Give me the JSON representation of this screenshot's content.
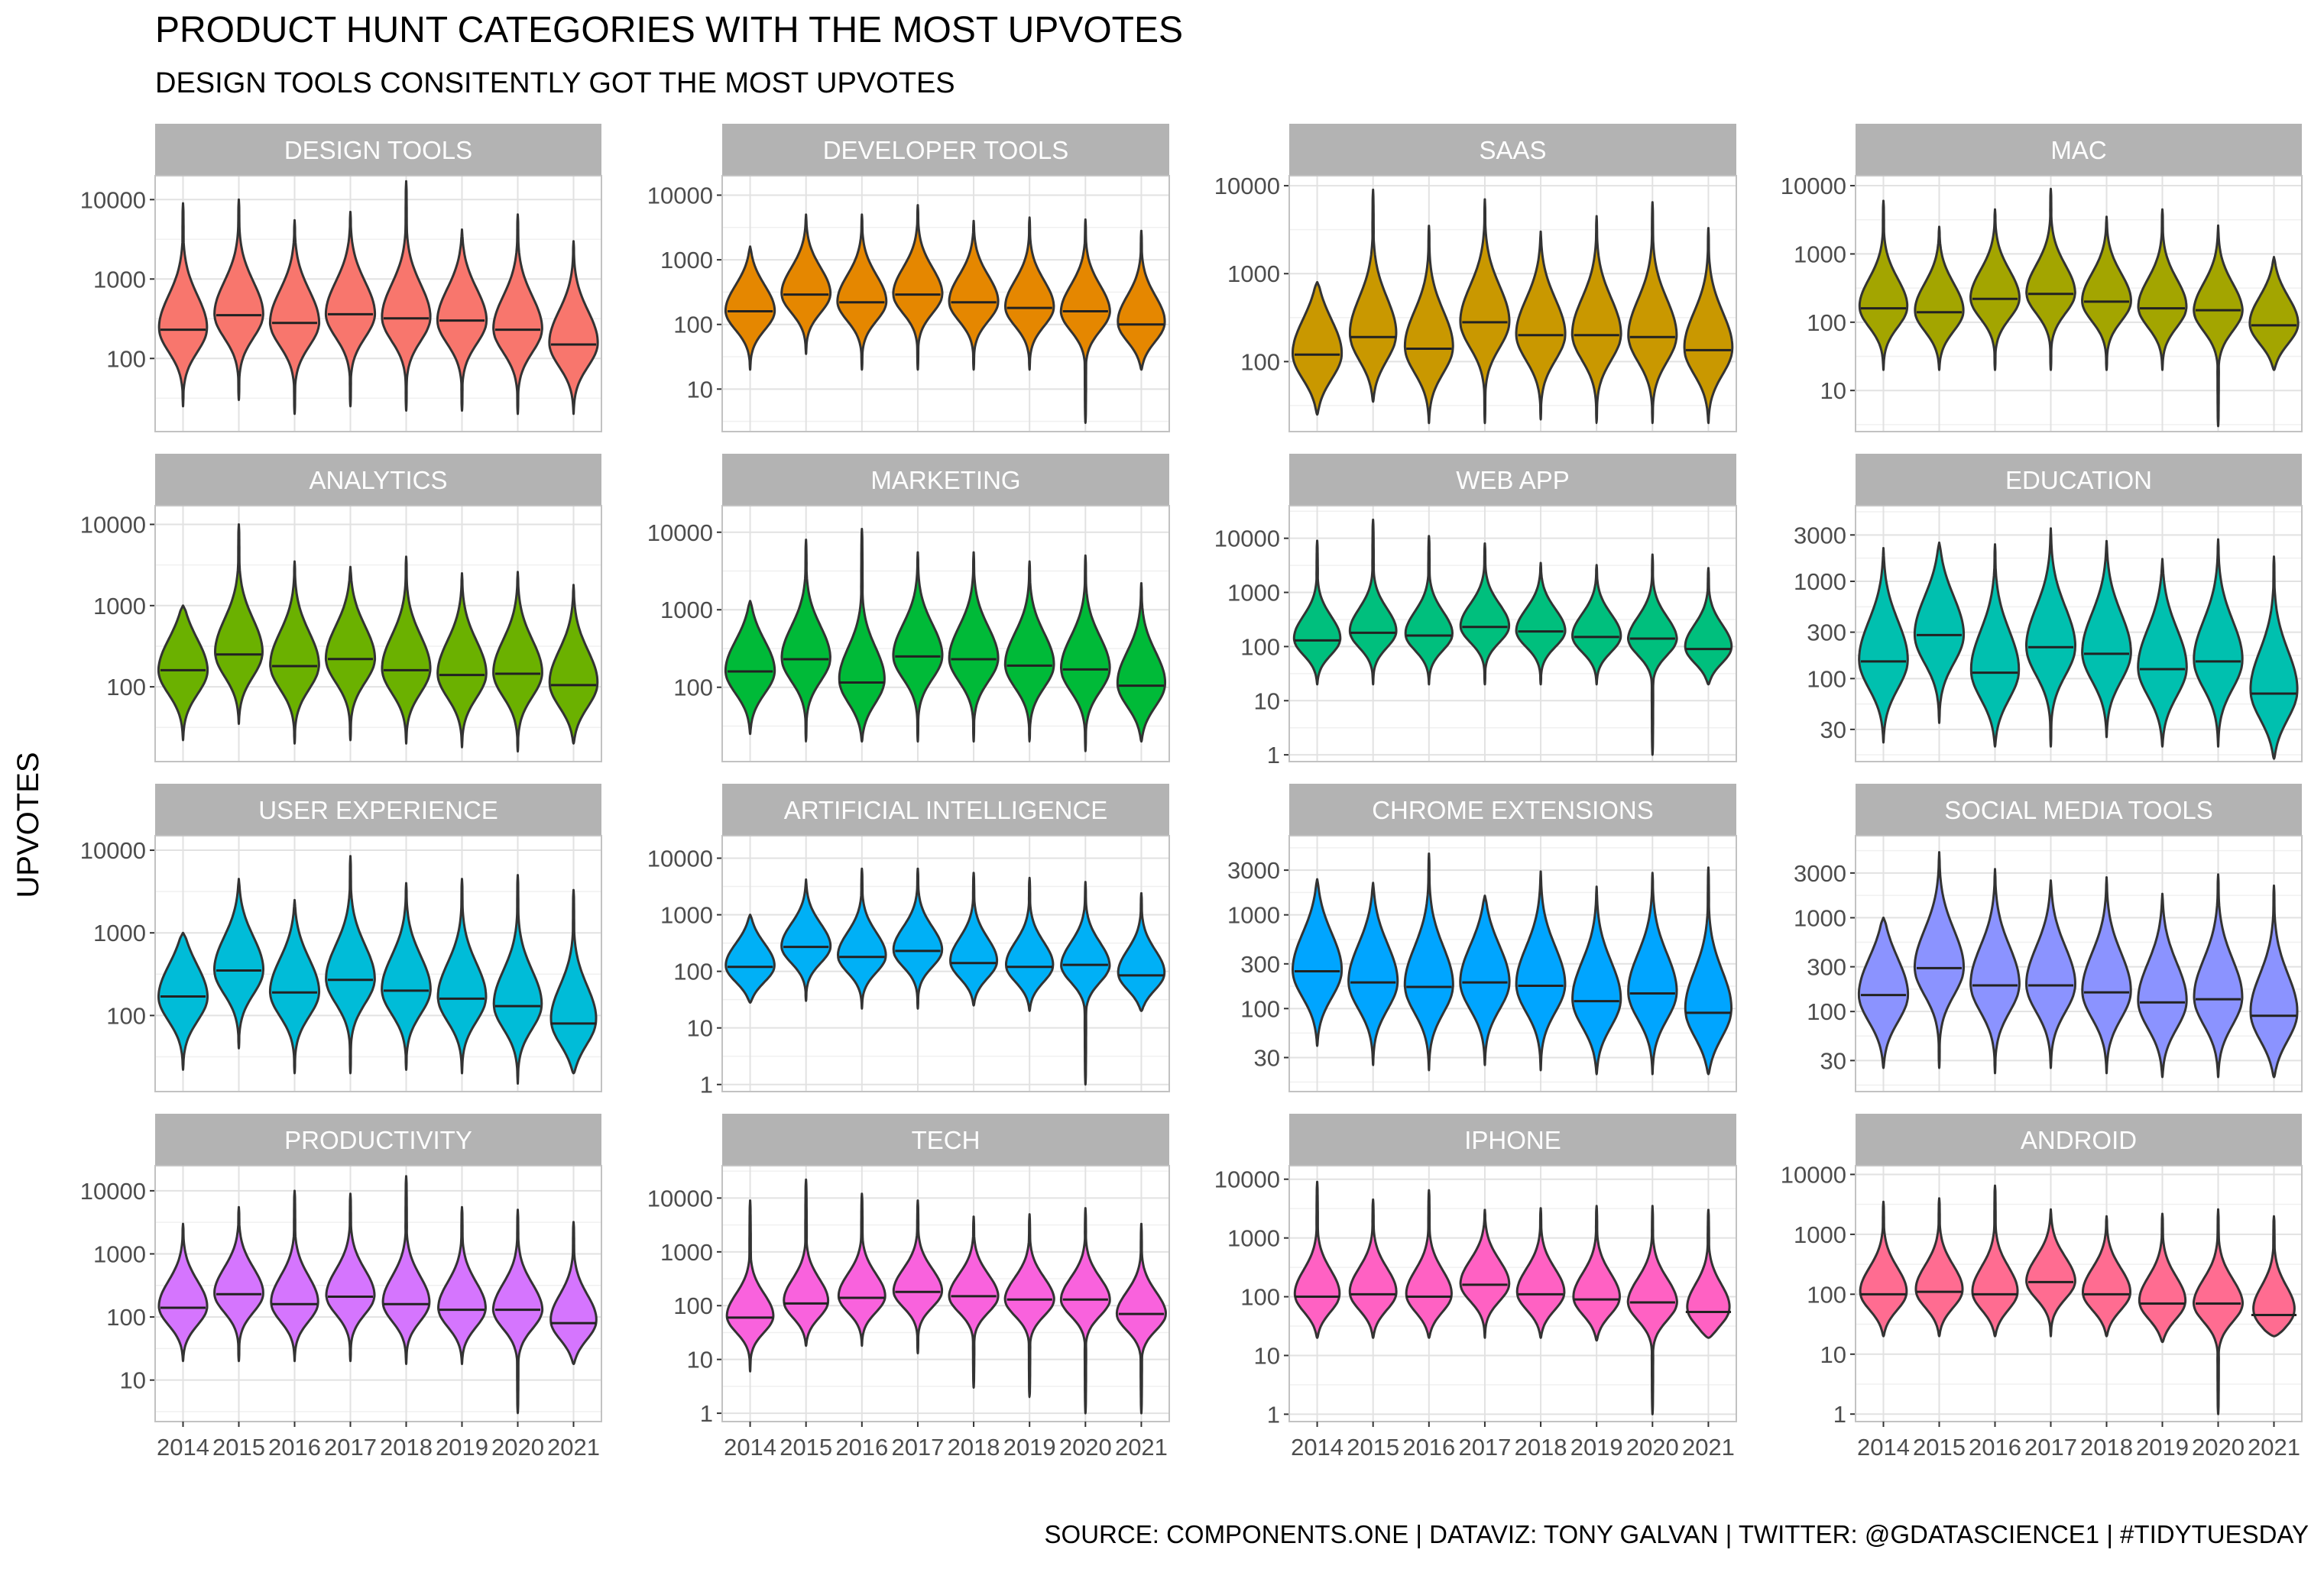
{
  "chart_data": {
    "type": "violin",
    "title": "PRODUCT HUNT CATEGORIES WITH THE MOST UPVOTES",
    "subtitle": "DESIGN TOOLS CONSITENTLY GOT THE MOST UPVOTES",
    "ylabel": "UPVOTES",
    "caption": "SOURCE: COMPONENTS.ONE  |  DATAVIZ: TONY GALVAN  |  TWITTER: @GDATASCIENCE1  |  #TIDYTUESDAY",
    "y_scale": "log10",
    "grid": true,
    "legend": "none",
    "categories": [
      "2014",
      "2015",
      "2016",
      "2017",
      "2018",
      "2019",
      "2020",
      "2021"
    ],
    "facets": [
      {
        "name": "DESIGN TOOLS",
        "color": "#F8766D",
        "ylim": [
          12,
          20000
        ],
        "yticks": [
          100,
          1000,
          10000
        ],
        "ytick_labels": [
          "100",
          "1000",
          "10000"
        ],
        "violins": [
          {
            "min": 25,
            "max": 9000,
            "median": 230
          },
          {
            "min": 30,
            "max": 10000,
            "median": 350
          },
          {
            "min": 20,
            "max": 5500,
            "median": 280
          },
          {
            "min": 25,
            "max": 7000,
            "median": 360
          },
          {
            "min": 22,
            "max": 17000,
            "median": 320
          },
          {
            "min": 22,
            "max": 4200,
            "median": 300
          },
          {
            "min": 20,
            "max": 6500,
            "median": 230
          },
          {
            "min": 20,
            "max": 3000,
            "median": 150
          }
        ]
      },
      {
        "name": "DEVELOPER TOOLS",
        "color": "#E58700",
        "ylim": [
          2.2,
          20000
        ],
        "yticks": [
          10,
          100,
          1000,
          10000
        ],
        "ytick_labels": [
          "10",
          "100",
          "1000",
          "10000"
        ],
        "violins": [
          {
            "min": 20,
            "max": 1600,
            "median": 160
          },
          {
            "min": 35,
            "max": 5000,
            "median": 290
          },
          {
            "min": 20,
            "max": 5000,
            "median": 220
          },
          {
            "min": 20,
            "max": 7000,
            "median": 290
          },
          {
            "min": 20,
            "max": 4000,
            "median": 220
          },
          {
            "min": 20,
            "max": 4500,
            "median": 180
          },
          {
            "min": 3,
            "max": 4200,
            "median": 160
          },
          {
            "min": 20,
            "max": 2800,
            "median": 100
          }
        ]
      },
      {
        "name": "SAAS",
        "color": "#C99800",
        "ylim": [
          16,
          13000
        ],
        "yticks": [
          100,
          1000,
          10000
        ],
        "ytick_labels": [
          "100",
          "1000",
          "10000"
        ],
        "violins": [
          {
            "min": 25,
            "max": 800,
            "median": 120
          },
          {
            "min": 35,
            "max": 9000,
            "median": 190
          },
          {
            "min": 20,
            "max": 3500,
            "median": 140
          },
          {
            "min": 20,
            "max": 7000,
            "median": 280
          },
          {
            "min": 22,
            "max": 3000,
            "median": 200
          },
          {
            "min": 20,
            "max": 4500,
            "median": 200
          },
          {
            "min": 20,
            "max": 6500,
            "median": 190
          },
          {
            "min": 20,
            "max": 3300,
            "median": 135
          }
        ]
      },
      {
        "name": "MAC",
        "color": "#A3A500",
        "ylim": [
          2.5,
          14000
        ],
        "yticks": [
          10,
          100,
          1000,
          10000
        ],
        "ytick_labels": [
          "10",
          "100",
          "1000",
          "10000"
        ],
        "violins": [
          {
            "min": 20,
            "max": 6000,
            "median": 160
          },
          {
            "min": 20,
            "max": 2500,
            "median": 140
          },
          {
            "min": 20,
            "max": 4500,
            "median": 220
          },
          {
            "min": 20,
            "max": 9000,
            "median": 260
          },
          {
            "min": 20,
            "max": 3500,
            "median": 200
          },
          {
            "min": 20,
            "max": 4500,
            "median": 160
          },
          {
            "min": 3,
            "max": 2600,
            "median": 150
          },
          {
            "min": 20,
            "max": 900,
            "median": 90
          }
        ]
      },
      {
        "name": "ANALYTICS",
        "color": "#6BB100",
        "ylim": [
          12,
          17000
        ],
        "yticks": [
          100,
          1000,
          10000
        ],
        "ytick_labels": [
          "100",
          "1000",
          "10000"
        ],
        "violins": [
          {
            "min": 22,
            "max": 1000,
            "median": 160
          },
          {
            "min": 35,
            "max": 10000,
            "median": 250
          },
          {
            "min": 20,
            "max": 3500,
            "median": 180
          },
          {
            "min": 22,
            "max": 3000,
            "median": 220
          },
          {
            "min": 20,
            "max": 4000,
            "median": 160
          },
          {
            "min": 18,
            "max": 2500,
            "median": 140
          },
          {
            "min": 16,
            "max": 2600,
            "median": 145
          },
          {
            "min": 20,
            "max": 1800,
            "median": 105
          }
        ]
      },
      {
        "name": "MARKETING",
        "color": "#00BA38",
        "ylim": [
          11,
          22000
        ],
        "yticks": [
          100,
          1000,
          10000
        ],
        "ytick_labels": [
          "100",
          "1000",
          "10000"
        ],
        "violins": [
          {
            "min": 25,
            "max": 1300,
            "median": 160
          },
          {
            "min": 20,
            "max": 8000,
            "median": 230
          },
          {
            "min": 20,
            "max": 11000,
            "median": 115
          },
          {
            "min": 20,
            "max": 5500,
            "median": 250
          },
          {
            "min": 20,
            "max": 5500,
            "median": 230
          },
          {
            "min": 20,
            "max": 4200,
            "median": 190
          },
          {
            "min": 15,
            "max": 5000,
            "median": 170
          },
          {
            "min": 20,
            "max": 2200,
            "median": 105
          }
        ]
      },
      {
        "name": "WEB APP",
        "color": "#00BF7D",
        "ylim": [
          0.75,
          40000
        ],
        "yticks": [
          1,
          10,
          100,
          1000,
          10000
        ],
        "ytick_labels": [
          "1",
          "10",
          "100",
          "1000",
          "10000"
        ],
        "violins": [
          {
            "min": 20,
            "max": 9000,
            "median": 130
          },
          {
            "min": 20,
            "max": 22000,
            "median": 180
          },
          {
            "min": 20,
            "max": 11000,
            "median": 160
          },
          {
            "min": 20,
            "max": 8000,
            "median": 230
          },
          {
            "min": 20,
            "max": 3500,
            "median": 190
          },
          {
            "min": 20,
            "max": 3200,
            "median": 150
          },
          {
            "min": 1,
            "max": 5000,
            "median": 140
          },
          {
            "min": 20,
            "max": 2800,
            "median": 90
          }
        ]
      },
      {
        "name": "EDUCATION",
        "color": "#00C0AF",
        "ylim": [
          14,
          6000
        ],
        "yticks": [
          30,
          100,
          300,
          1000,
          3000
        ],
        "ytick_labels": [
          "30",
          "100",
          "300",
          "1000",
          "3000"
        ],
        "violins": [
          {
            "min": 22,
            "max": 2200,
            "median": 150
          },
          {
            "min": 35,
            "max": 2500,
            "median": 280
          },
          {
            "min": 20,
            "max": 2400,
            "median": 115
          },
          {
            "min": 20,
            "max": 3500,
            "median": 210
          },
          {
            "min": 25,
            "max": 2600,
            "median": 180
          },
          {
            "min": 20,
            "max": 1700,
            "median": 125
          },
          {
            "min": 20,
            "max": 2700,
            "median": 150
          },
          {
            "min": 15,
            "max": 1800,
            "median": 70
          }
        ]
      },
      {
        "name": "USER EXPERIENCE",
        "color": "#00BCD8",
        "ylim": [
          12,
          15000
        ],
        "yticks": [
          100,
          1000,
          10000
        ],
        "ytick_labels": [
          "100",
          "1000",
          "10000"
        ],
        "violins": [
          {
            "min": 22,
            "max": 1000,
            "median": 170
          },
          {
            "min": 40,
            "max": 4500,
            "median": 350
          },
          {
            "min": 20,
            "max": 2500,
            "median": 190
          },
          {
            "min": 20,
            "max": 8500,
            "median": 270
          },
          {
            "min": 22,
            "max": 4000,
            "median": 200
          },
          {
            "min": 20,
            "max": 4500,
            "median": 160
          },
          {
            "min": 15,
            "max": 5000,
            "median": 130
          },
          {
            "min": 20,
            "max": 3300,
            "median": 80
          }
        ]
      },
      {
        "name": "ARTIFICIAL INTELLIGENCE",
        "color": "#00B0F6",
        "ylim": [
          0.75,
          25000
        ],
        "yticks": [
          1,
          10,
          100,
          1000,
          10000
        ],
        "ytick_labels": [
          "1",
          "10",
          "100",
          "1000",
          "10000"
        ],
        "violins": [
          {
            "min": 28,
            "max": 1000,
            "median": 120
          },
          {
            "min": 30,
            "max": 4200,
            "median": 270
          },
          {
            "min": 22,
            "max": 6500,
            "median": 180
          },
          {
            "min": 22,
            "max": 6500,
            "median": 230
          },
          {
            "min": 25,
            "max": 5500,
            "median": 140
          },
          {
            "min": 20,
            "max": 4500,
            "median": 120
          },
          {
            "min": 1,
            "max": 3800,
            "median": 130
          },
          {
            "min": 20,
            "max": 2400,
            "median": 85
          }
        ]
      },
      {
        "name": "CHROME EXTENSIONS",
        "color": "#00A5FF",
        "ylim": [
          13,
          7000
        ],
        "yticks": [
          30,
          100,
          300,
          1000,
          3000
        ],
        "ytick_labels": [
          "30",
          "100",
          "300",
          "1000",
          "3000"
        ],
        "violins": [
          {
            "min": 40,
            "max": 2400,
            "median": 250
          },
          {
            "min": 25,
            "max": 2200,
            "median": 190
          },
          {
            "min": 22,
            "max": 4500,
            "median": 170
          },
          {
            "min": 25,
            "max": 1600,
            "median": 190
          },
          {
            "min": 22,
            "max": 2900,
            "median": 175
          },
          {
            "min": 20,
            "max": 2000,
            "median": 120
          },
          {
            "min": 20,
            "max": 2800,
            "median": 145
          },
          {
            "min": 20,
            "max": 3200,
            "median": 90
          }
        ]
      },
      {
        "name": "SOCIAL MEDIA TOOLS",
        "color": "#8B93FF",
        "ylim": [
          14,
          7500
        ],
        "yticks": [
          30,
          100,
          300,
          1000,
          3000
        ],
        "ytick_labels": [
          "30",
          "100",
          "300",
          "1000",
          "3000"
        ],
        "violins": [
          {
            "min": 25,
            "max": 1000,
            "median": 150
          },
          {
            "min": 25,
            "max": 5000,
            "median": 290
          },
          {
            "min": 22,
            "max": 3300,
            "median": 190
          },
          {
            "min": 25,
            "max": 2500,
            "median": 190
          },
          {
            "min": 22,
            "max": 2700,
            "median": 160
          },
          {
            "min": 20,
            "max": 1800,
            "median": 125
          },
          {
            "min": 20,
            "max": 2900,
            "median": 135
          },
          {
            "min": 20,
            "max": 2200,
            "median": 90
          }
        ]
      },
      {
        "name": "PRODUCTIVITY",
        "color": "#D575FE",
        "ylim": [
          2.2,
          25000
        ],
        "yticks": [
          10,
          100,
          1000,
          10000
        ],
        "ytick_labels": [
          "10",
          "100",
          "1000",
          "10000"
        ],
        "violins": [
          {
            "min": 20,
            "max": 3000,
            "median": 140
          },
          {
            "min": 20,
            "max": 5500,
            "median": 230
          },
          {
            "min": 20,
            "max": 10000,
            "median": 160
          },
          {
            "min": 20,
            "max": 9000,
            "median": 210
          },
          {
            "min": 18,
            "max": 17000,
            "median": 160
          },
          {
            "min": 18,
            "max": 5500,
            "median": 130
          },
          {
            "min": 3,
            "max": 5000,
            "median": 130
          },
          {
            "min": 18,
            "max": 3200,
            "median": 80
          }
        ]
      },
      {
        "name": "TECH",
        "color": "#F962DD",
        "ylim": [
          0.7,
          40000
        ],
        "yticks": [
          1,
          10,
          100,
          1000,
          10000
        ],
        "ytick_labels": [
          "1",
          "10",
          "100",
          "1000",
          "10000"
        ],
        "violins": [
          {
            "min": 6,
            "max": 9000,
            "median": 60
          },
          {
            "min": 18,
            "max": 22000,
            "median": 110
          },
          {
            "min": 18,
            "max": 12000,
            "median": 140
          },
          {
            "min": 13,
            "max": 9000,
            "median": 180
          },
          {
            "min": 3,
            "max": 4500,
            "median": 150
          },
          {
            "min": 2,
            "max": 5000,
            "median": 130
          },
          {
            "min": 1,
            "max": 6500,
            "median": 130
          },
          {
            "min": 1,
            "max": 3300,
            "median": 70
          }
        ]
      },
      {
        "name": "IPHONE",
        "color": "#FF61C3",
        "ylim": [
          0.75,
          17000
        ],
        "yticks": [
          1,
          10,
          100,
          1000,
          10000
        ],
        "ytick_labels": [
          "1",
          "10",
          "100",
          "1000",
          "10000"
        ],
        "violins": [
          {
            "min": 20,
            "max": 9000,
            "median": 100
          },
          {
            "min": 20,
            "max": 4500,
            "median": 110
          },
          {
            "min": 20,
            "max": 6500,
            "median": 100
          },
          {
            "min": 20,
            "max": 3000,
            "median": 160
          },
          {
            "min": 20,
            "max": 3200,
            "median": 110
          },
          {
            "min": 18,
            "max": 3500,
            "median": 90
          },
          {
            "min": 1,
            "max": 3500,
            "median": 80
          },
          {
            "min": 20,
            "max": 3000,
            "median": 55
          }
        ]
      },
      {
        "name": "ANDROID",
        "color": "#FF6C91",
        "ylim": [
          0.75,
          14000
        ],
        "yticks": [
          1,
          10,
          100,
          1000,
          10000
        ],
        "ytick_labels": [
          "1",
          "10",
          "100",
          "1000",
          "10000"
        ],
        "violins": [
          {
            "min": 20,
            "max": 3500,
            "median": 100
          },
          {
            "min": 20,
            "max": 4000,
            "median": 110
          },
          {
            "min": 20,
            "max": 6500,
            "median": 100
          },
          {
            "min": 20,
            "max": 2600,
            "median": 160
          },
          {
            "min": 20,
            "max": 2000,
            "median": 100
          },
          {
            "min": 16,
            "max": 2200,
            "median": 70
          },
          {
            "min": 1,
            "max": 2600,
            "median": 70
          },
          {
            "min": 20,
            "max": 2000,
            "median": 45
          }
        ]
      }
    ]
  }
}
